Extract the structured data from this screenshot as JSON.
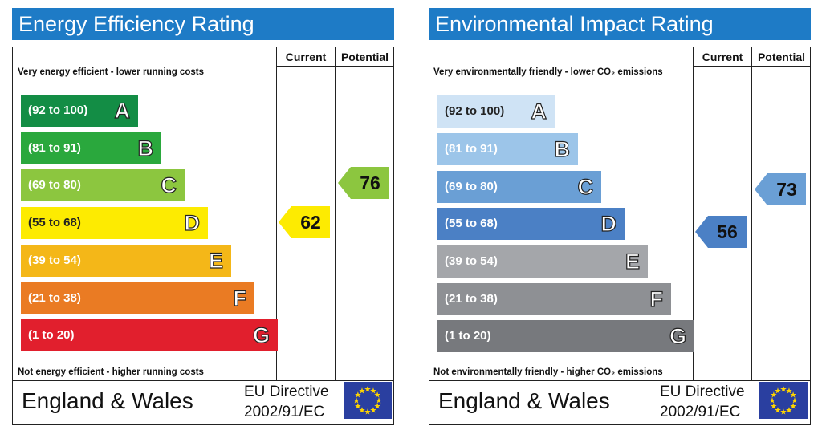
{
  "colors": {
    "title_bar": "#1e7bc6",
    "eu_flag": "#2a3fa0",
    "eu_star": "#ffd500"
  },
  "icons": {
    "eu_flag": "eu-flag-icon"
  },
  "chart_data": [
    {
      "type": "bar",
      "title": "Energy Efficiency Rating",
      "column_headers": [
        "Current",
        "Potential"
      ],
      "top_note": "Very energy efficient - lower running costs",
      "bottom_note": "Not energy efficient - higher running costs",
      "bands": [
        {
          "letter": "A",
          "range": "(92 to 100)",
          "color": "#138d45"
        },
        {
          "letter": "B",
          "range": "(81 to 91)",
          "color": "#2aa83d"
        },
        {
          "letter": "C",
          "range": "(69 to 80)",
          "color": "#8cc63f"
        },
        {
          "letter": "D",
          "range": "(55 to 68)",
          "color": "#fdeb01"
        },
        {
          "letter": "E",
          "range": "(39 to 54)",
          "color": "#f4b718"
        },
        {
          "letter": "F",
          "range": "(21 to 38)",
          "color": "#ea7b23"
        },
        {
          "letter": "G",
          "range": "(1 to 20)",
          "color": "#e11f2d"
        }
      ],
      "current": {
        "value": 62,
        "band": "D",
        "color": "#fdeb01"
      },
      "potential": {
        "value": 76,
        "band": "C",
        "color": "#8cc63f"
      },
      "footer": {
        "region": "England & Wales",
        "directive_line1": "EU Directive",
        "directive_line2": "2002/91/EC"
      }
    },
    {
      "type": "bar",
      "title": "Environmental Impact Rating",
      "column_headers": [
        "Current",
        "Potential"
      ],
      "top_note": "Very environmentally friendly - lower CO₂ emissions",
      "bottom_note": "Not environmentally friendly - higher CO₂ emissions",
      "bands": [
        {
          "letter": "A",
          "range": "(92 to 100)",
          "color": "#cfe3f5"
        },
        {
          "letter": "B",
          "range": "(81 to 91)",
          "color": "#9cc5e9"
        },
        {
          "letter": "C",
          "range": "(69 to 80)",
          "color": "#6a9fd5"
        },
        {
          "letter": "D",
          "range": "(55 to 68)",
          "color": "#4b80c5"
        },
        {
          "letter": "E",
          "range": "(39 to 54)",
          "color": "#a4a6aa"
        },
        {
          "letter": "F",
          "range": "(21 to 38)",
          "color": "#8e9094"
        },
        {
          "letter": "G",
          "range": "(1 to 20)",
          "color": "#77797d"
        }
      ],
      "current": {
        "value": 56,
        "band": "D",
        "color": "#4b80c5"
      },
      "potential": {
        "value": 73,
        "band": "C",
        "color": "#6a9fd5"
      },
      "footer": {
        "region": "England & Wales",
        "directive_line1": "EU Directive",
        "directive_line2": "2002/91/EC"
      }
    }
  ]
}
